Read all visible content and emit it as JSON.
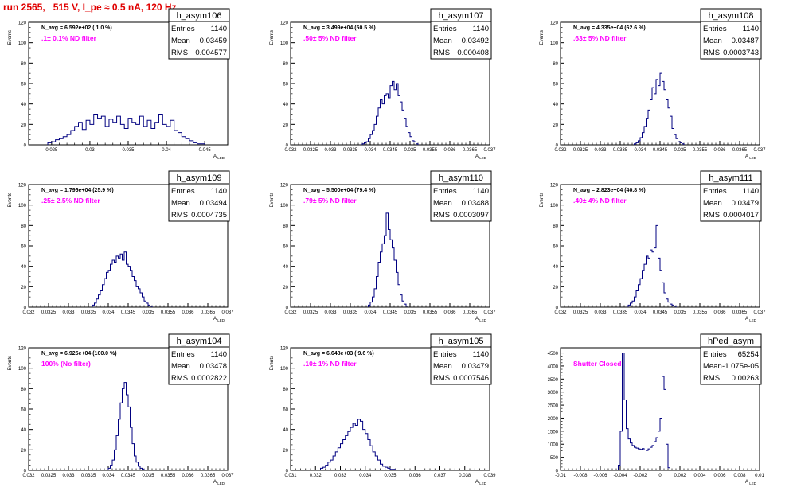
{
  "page": {
    "title": "run 2565,   515 V, I_pe ≈ 0.5 nA, 120 Hz"
  },
  "chart_data": [
    {
      "type": "histogram",
      "name": "h_asym106",
      "stats": {
        "entries": "1140",
        "mean": "0.03459",
        "rms": "0.004577"
      },
      "navg": "N_avg = 6.592e+02 ( 1.0 %)",
      "filter": ".1± 0.1% ND filter",
      "xlabel": "A_LED",
      "ylabel": "Events",
      "xlim": [
        0.022,
        0.048
      ],
      "ylim": [
        0,
        120
      ],
      "xticks": [
        0.025,
        0.03,
        0.035,
        0.04,
        0.045
      ],
      "xtick_labels": [
        "0.025",
        "0.03",
        "0.035",
        "0.04",
        "0.045"
      ],
      "yticks": [
        0,
        20,
        40,
        60,
        80,
        100,
        120
      ],
      "x_start": 0.0245,
      "bin_width": 0.0005,
      "values": [
        2,
        3,
        5,
        6,
        8,
        10,
        14,
        18,
        22,
        15,
        24,
        20,
        30,
        26,
        28,
        18,
        25,
        22,
        28,
        20,
        16,
        26,
        22,
        20,
        28,
        18,
        24,
        16,
        22,
        30,
        20,
        18,
        24,
        14,
        12,
        8,
        6,
        4,
        2,
        1,
        1
      ]
    },
    {
      "type": "histogram",
      "name": "h_asym107",
      "stats": {
        "entries": "1140",
        "mean": "0.03492",
        "rms": "0.000408"
      },
      "navg": "N_avg = 3.499e+04 (50.5 %)",
      "filter": ".50± 5% ND filter",
      "xlabel": "A_LED",
      "ylabel": "Events",
      "xlim": [
        0.032,
        0.037
      ],
      "ylim": [
        0,
        120
      ],
      "xticks": [
        0.032,
        0.0325,
        0.033,
        0.0335,
        0.034,
        0.0345,
        0.035,
        0.0355,
        0.036,
        0.0365,
        0.037
      ],
      "xtick_labels": [
        "0.032",
        "0.0325",
        "0.033",
        "0.0335",
        "0.034",
        "0.0345",
        "0.035",
        "0.0355",
        "0.036",
        "0.0365",
        "0.037"
      ],
      "yticks": [
        0,
        20,
        40,
        60,
        80,
        100,
        120
      ],
      "x_start": 0.0338,
      "bin_width": 5e-05,
      "values": [
        1,
        2,
        3,
        6,
        10,
        14,
        20,
        28,
        36,
        44,
        40,
        48,
        50,
        46,
        58,
        62,
        54,
        60,
        48,
        42,
        34,
        26,
        18,
        12,
        8,
        4,
        3,
        1
      ]
    },
    {
      "type": "histogram",
      "name": "h_asym108",
      "stats": {
        "entries": "1140",
        "mean": "0.03487",
        "rms": "0.0003743"
      },
      "navg": "N_avg = 4.335e+04 (62.6 %)",
      "filter": ".63± 5% ND filter",
      "xlabel": "A_LED",
      "ylabel": "Events",
      "xlim": [
        0.032,
        0.037
      ],
      "ylim": [
        0,
        120
      ],
      "xticks": [
        0.032,
        0.0325,
        0.033,
        0.0335,
        0.034,
        0.0345,
        0.035,
        0.0355,
        0.036,
        0.0365,
        0.037
      ],
      "xtick_labels": [
        "0.032",
        "0.0325",
        "0.033",
        "0.0335",
        "0.034",
        "0.0345",
        "0.035",
        "0.0355",
        "0.036",
        "0.0365",
        "0.037"
      ],
      "yticks": [
        0,
        20,
        40,
        60,
        80,
        100,
        120
      ],
      "x_start": 0.03385,
      "bin_width": 5e-05,
      "values": [
        1,
        2,
        4,
        7,
        12,
        18,
        26,
        34,
        44,
        56,
        50,
        64,
        58,
        70,
        62,
        54,
        44,
        36,
        28,
        16,
        10,
        6,
        3,
        2,
        1
      ]
    },
    {
      "type": "histogram",
      "name": "h_asym109",
      "stats": {
        "entries": "1140",
        "mean": "0.03494",
        "rms": "0.0004735"
      },
      "navg": "N_avg = 1.796e+04 (25.9 %)",
      "filter": ".25± 2.5% ND filter",
      "xlabel": "A_LED",
      "ylabel": "Events",
      "xlim": [
        0.032,
        0.037
      ],
      "ylim": [
        0,
        120
      ],
      "xticks": [
        0.032,
        0.0325,
        0.033,
        0.0335,
        0.034,
        0.0345,
        0.035,
        0.0355,
        0.036,
        0.0365,
        0.037
      ],
      "xtick_labels": [
        "0.032",
        "0.0325",
        "0.033",
        "0.0335",
        "0.034",
        "0.0345",
        "0.035",
        "0.0355",
        "0.036",
        "0.0365",
        "0.037"
      ],
      "yticks": [
        0,
        20,
        40,
        60,
        80,
        100,
        120
      ],
      "x_start": 0.0336,
      "bin_width": 5e-05,
      "values": [
        2,
        4,
        8,
        12,
        16,
        22,
        28,
        34,
        36,
        42,
        46,
        44,
        50,
        48,
        52,
        46,
        54,
        42,
        40,
        36,
        30,
        26,
        20,
        18,
        14,
        10,
        6,
        4,
        2,
        1
      ]
    },
    {
      "type": "histogram",
      "name": "h_asym110",
      "stats": {
        "entries": "1140",
        "mean": "0.03488",
        "rms": "0.0003097"
      },
      "navg": "N_avg = 5.500e+04 (79.4 %)",
      "filter": ".79± 5% ND filter",
      "xlabel": "A_LED",
      "ylabel": "Events",
      "xlim": [
        0.032,
        0.037
      ],
      "ylim": [
        0,
        120
      ],
      "xticks": [
        0.032,
        0.0325,
        0.033,
        0.0335,
        0.034,
        0.0345,
        0.035,
        0.0355,
        0.036,
        0.0365,
        0.037
      ],
      "xtick_labels": [
        "0.032",
        "0.0325",
        "0.033",
        "0.0335",
        "0.034",
        "0.0345",
        "0.035",
        "0.0355",
        "0.036",
        "0.0365",
        "0.037"
      ],
      "yticks": [
        0,
        20,
        40,
        60,
        80,
        100,
        120
      ],
      "x_start": 0.03395,
      "bin_width": 5e-05,
      "values": [
        2,
        5,
        10,
        18,
        30,
        44,
        54,
        62,
        70,
        92,
        76,
        66,
        58,
        46,
        34,
        22,
        12,
        6,
        3,
        1
      ]
    },
    {
      "type": "histogram",
      "name": "h_asym111",
      "stats": {
        "entries": "1140",
        "mean": "0.03479",
        "rms": "0.0004017"
      },
      "navg": "N_avg = 2.823e+04 (40.8 %)",
      "filter": ".40± 4% ND filter",
      "xlabel": "A_LED",
      "ylabel": "Events",
      "xlim": [
        0.032,
        0.037
      ],
      "ylim": [
        0,
        120
      ],
      "xticks": [
        0.032,
        0.0325,
        0.033,
        0.0335,
        0.034,
        0.0345,
        0.035,
        0.0355,
        0.036,
        0.0365,
        0.037
      ],
      "xtick_labels": [
        "0.032",
        "0.0325",
        "0.033",
        "0.0335",
        "0.034",
        "0.0345",
        "0.035",
        "0.0355",
        "0.036",
        "0.0365",
        "0.037"
      ],
      "yticks": [
        0,
        20,
        40,
        60,
        80,
        100,
        120
      ],
      "x_start": 0.0337,
      "bin_width": 5e-05,
      "values": [
        2,
        4,
        6,
        10,
        16,
        22,
        28,
        36,
        42,
        50,
        48,
        56,
        54,
        58,
        80,
        48,
        36,
        24,
        14,
        8,
        5,
        3,
        2,
        1
      ]
    },
    {
      "type": "histogram",
      "name": "h_asym104",
      "stats": {
        "entries": "1140",
        "mean": "0.03478",
        "rms": "0.0002822"
      },
      "navg": "N_avg = 6.925e+04 (100.0 %)",
      "filter": "100% (No filter)",
      "xlabel": "A_LED",
      "ylabel": "Events",
      "xlim": [
        0.032,
        0.037
      ],
      "ylim": [
        0,
        120
      ],
      "xticks": [
        0.032,
        0.0325,
        0.033,
        0.0335,
        0.034,
        0.0345,
        0.035,
        0.0355,
        0.036,
        0.0365,
        0.037
      ],
      "xtick_labels": [
        "0.032",
        "0.0325",
        "0.033",
        "0.0335",
        "0.034",
        "0.0345",
        "0.035",
        "0.0355",
        "0.036",
        "0.0365",
        "0.037"
      ],
      "yticks": [
        0,
        20,
        40,
        60,
        80,
        100,
        120
      ],
      "x_start": 0.034,
      "bin_width": 5e-05,
      "values": [
        2,
        5,
        10,
        20,
        34,
        50,
        66,
        80,
        86,
        74,
        62,
        42,
        26,
        14,
        8,
        4,
        2,
        1
      ]
    },
    {
      "type": "histogram",
      "name": "h_asym105",
      "stats": {
        "entries": "1140",
        "mean": "0.03479",
        "rms": "0.0007546"
      },
      "navg": "N_avg = 6.648e+03 ( 9.6 %)",
      "filter": ".10± 1% ND filter",
      "xlabel": "A_LED",
      "ylabel": "Events",
      "xlim": [
        0.031,
        0.039
      ],
      "ylim": [
        0,
        120
      ],
      "xticks": [
        0.031,
        0.032,
        0.033,
        0.034,
        0.035,
        0.036,
        0.037,
        0.038,
        0.039
      ],
      "xtick_labels": [
        "0.031",
        "0.032",
        "0.033",
        "0.034",
        "0.035",
        "0.036",
        "0.037",
        "0.038",
        "0.039"
      ],
      "yticks": [
        0,
        20,
        40,
        60,
        80,
        100,
        120
      ],
      "x_start": 0.0322,
      "bin_width": 0.0001,
      "values": [
        2,
        3,
        5,
        8,
        10,
        14,
        18,
        22,
        26,
        30,
        34,
        38,
        42,
        46,
        44,
        50,
        48,
        40,
        36,
        30,
        24,
        18,
        14,
        10,
        6,
        4,
        3,
        2,
        1,
        1
      ]
    },
    {
      "type": "histogram",
      "name": "hPed_asym",
      "stats": {
        "entries": "65254",
        "mean": "-1.075e-05",
        "rms": "0.00263"
      },
      "navg": "",
      "filter": "Shutter Closed",
      "xlabel": "A_LED",
      "ylabel": "",
      "xlim": [
        -0.01,
        0.01
      ],
      "ylim": [
        0,
        4700
      ],
      "xticks": [
        -0.01,
        -0.008,
        -0.006,
        -0.004,
        -0.002,
        0,
        0.002,
        0.004,
        0.006,
        0.008,
        0.01
      ],
      "xtick_labels": [
        "-0.01",
        "-0.008",
        "-0.006",
        "-0.004",
        "-0.002",
        "0",
        "0.002",
        "0.004",
        "0.006",
        "0.008",
        "0.01"
      ],
      "yticks": [
        0,
        500,
        1000,
        1500,
        2000,
        2500,
        3000,
        3500,
        4000,
        4500
      ],
      "x_start": -0.0042,
      "bin_width": 0.0002,
      "values": [
        200,
        1500,
        4500,
        2700,
        1600,
        1200,
        1050,
        950,
        880,
        850,
        820,
        800,
        830,
        780,
        760,
        820,
        880,
        950,
        1100,
        1250,
        1500,
        2000,
        3600,
        3100,
        1000,
        100
      ]
    }
  ]
}
